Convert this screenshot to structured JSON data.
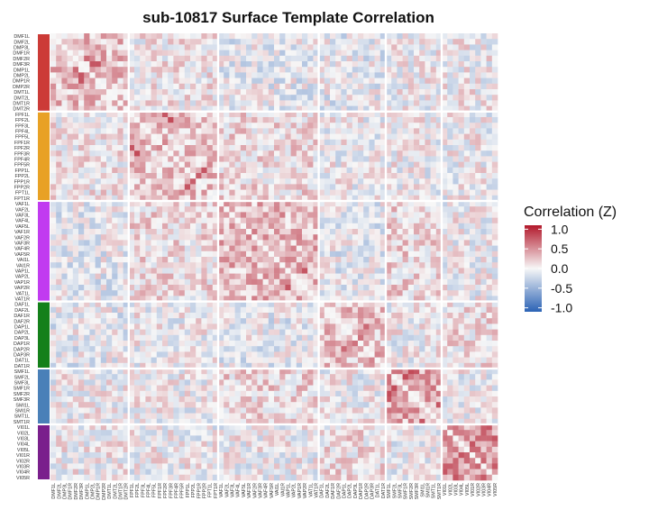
{
  "chart_data": {
    "type": "heatmap",
    "title": "sub-10817 Surface Template Correlation",
    "legend": {
      "title": "Correlation (Z)",
      "ticks": [
        "1.0",
        "0.5",
        "0.0",
        "-0.5",
        "-1.0"
      ],
      "tick_values": [
        1.0,
        0.5,
        0.0,
        -0.5,
        -1.0
      ],
      "range": [
        -1.1,
        1.1
      ],
      "colors": {
        "low": "#2b62b5",
        "mid": "#f7f7f7",
        "high": "#b2182b"
      },
      "placement": "right"
    },
    "groups": [
      {
        "color": "#cc3b37",
        "labels": [
          "DMF1L",
          "DMF2L",
          "DMP3L",
          "DMF1R",
          "DMF2R",
          "DMF3R",
          "DMP1L",
          "DMP2L",
          "DMP1R",
          "DMP2R",
          "DMT1L",
          "DMT2L",
          "DMT1R",
          "DMT2R"
        ]
      },
      {
        "color": "#e8a125",
        "labels": [
          "FPF1L",
          "FPF2L",
          "FPF3L",
          "FPF4L",
          "FPF5L",
          "FPF1R",
          "FPF2R",
          "FPF3R",
          "FPF4R",
          "FPF5R",
          "FPP1L",
          "FPP2L",
          "FPP1R",
          "FPP2R",
          "FPT1L",
          "FPT1R"
        ]
      },
      {
        "color": "#c13bf0",
        "labels": [
          "VAF1L",
          "VAF2L",
          "VAF3L",
          "VAF4L",
          "VAF5L",
          "VAF1R",
          "VAF2R",
          "VAF3R",
          "VAF4R",
          "VAF5R",
          "VAI1L",
          "VAI1R",
          "VAP1L",
          "VAP2L",
          "VAP1R",
          "VAP2R",
          "VAT1L",
          "VAT1R"
        ]
      },
      {
        "color": "#14801a",
        "labels": [
          "DAF1L",
          "DAF2L",
          "DAF1R",
          "DAF2R",
          "DAP1L",
          "DAP2L",
          "DAP3L",
          "DAP1R",
          "DAP2R",
          "DAP3R",
          "DAT1L",
          "DAT1R"
        ]
      },
      {
        "color": "#4a80b8",
        "labels": [
          "SMF1L",
          "SMF2L",
          "SMF3L",
          "SMF1R",
          "SMF2R",
          "SMF3R",
          "SMI1L",
          "SMI1R",
          "SMT1L",
          "SMT1R"
        ]
      },
      {
        "color": "#7a1f8c",
        "labels": [
          "VI01L",
          "VI02L",
          "VI03L",
          "VI04L",
          "VI05L",
          "VI01R",
          "VI02R",
          "VI03R",
          "VI04R",
          "VI05R"
        ]
      }
    ],
    "value_note": "Cells are unlabeled; values estimated by color only. Matrix is symmetric with diagonal blocks by network group.",
    "block_means": [
      [
        0.25,
        0.05,
        -0.05,
        -0.05,
        0.0,
        0.02
      ],
      [
        0.05,
        0.25,
        0.12,
        0.0,
        0.0,
        0.0
      ],
      [
        -0.05,
        0.12,
        0.3,
        -0.05,
        0.15,
        0.0
      ],
      [
        -0.05,
        0.0,
        -0.05,
        0.25,
        0.0,
        0.1
      ],
      [
        0.0,
        0.0,
        0.15,
        0.0,
        0.35,
        0.0
      ],
      [
        0.02,
        0.0,
        0.0,
        0.1,
        0.0,
        0.45
      ]
    ],
    "highlights": [
      {
        "row": "DMF3R",
        "col": "DMP2L",
        "value": 0.8
      },
      {
        "row": "DMF2R",
        "col": "DMP1L",
        "value": 0.7
      },
      {
        "row": "DMP1R",
        "col": "DMF3R",
        "value": 0.8
      },
      {
        "row": "FPF2L",
        "col": "FPF3R",
        "value": 0.85
      },
      {
        "row": "FPF2R",
        "col": "FPF1L",
        "value": 0.8
      },
      {
        "row": "FPP1L",
        "col": "FPP2R",
        "value": 0.8
      },
      {
        "row": "FPP2L",
        "col": "FPP1R",
        "value": 0.75
      },
      {
        "row": "VAP1L",
        "col": "VAP2R",
        "value": 0.8
      },
      {
        "row": "VAP2R",
        "col": "VAP1L",
        "value": 0.8
      },
      {
        "row": "VAF1L",
        "col": "VAF3R",
        "value": 0.6
      },
      {
        "row": "DAP1L",
        "col": "DAP2R",
        "value": 0.7
      },
      {
        "row": "DAP3L",
        "col": "DAP1R",
        "value": 0.65
      },
      {
        "row": "SMF1L",
        "col": "SMF2R",
        "value": 0.85
      },
      {
        "row": "SMF2L",
        "col": "SMF1R",
        "value": 0.85
      },
      {
        "row": "SMF3R",
        "col": "SMF1L",
        "value": 0.8
      },
      {
        "row": "SMI1L",
        "col": "SMT1R",
        "value": 0.8
      },
      {
        "row": "VI01L",
        "col": "VI04R",
        "value": 0.8
      },
      {
        "row": "VI02L",
        "col": "VI03R",
        "value": 0.75
      },
      {
        "row": "VI03L",
        "col": "VI05R",
        "value": 0.8
      },
      {
        "row": "VI04L",
        "col": "VI01R",
        "value": 0.8
      },
      {
        "row": "VI05L",
        "col": "VI02R",
        "value": 0.7
      }
    ]
  }
}
